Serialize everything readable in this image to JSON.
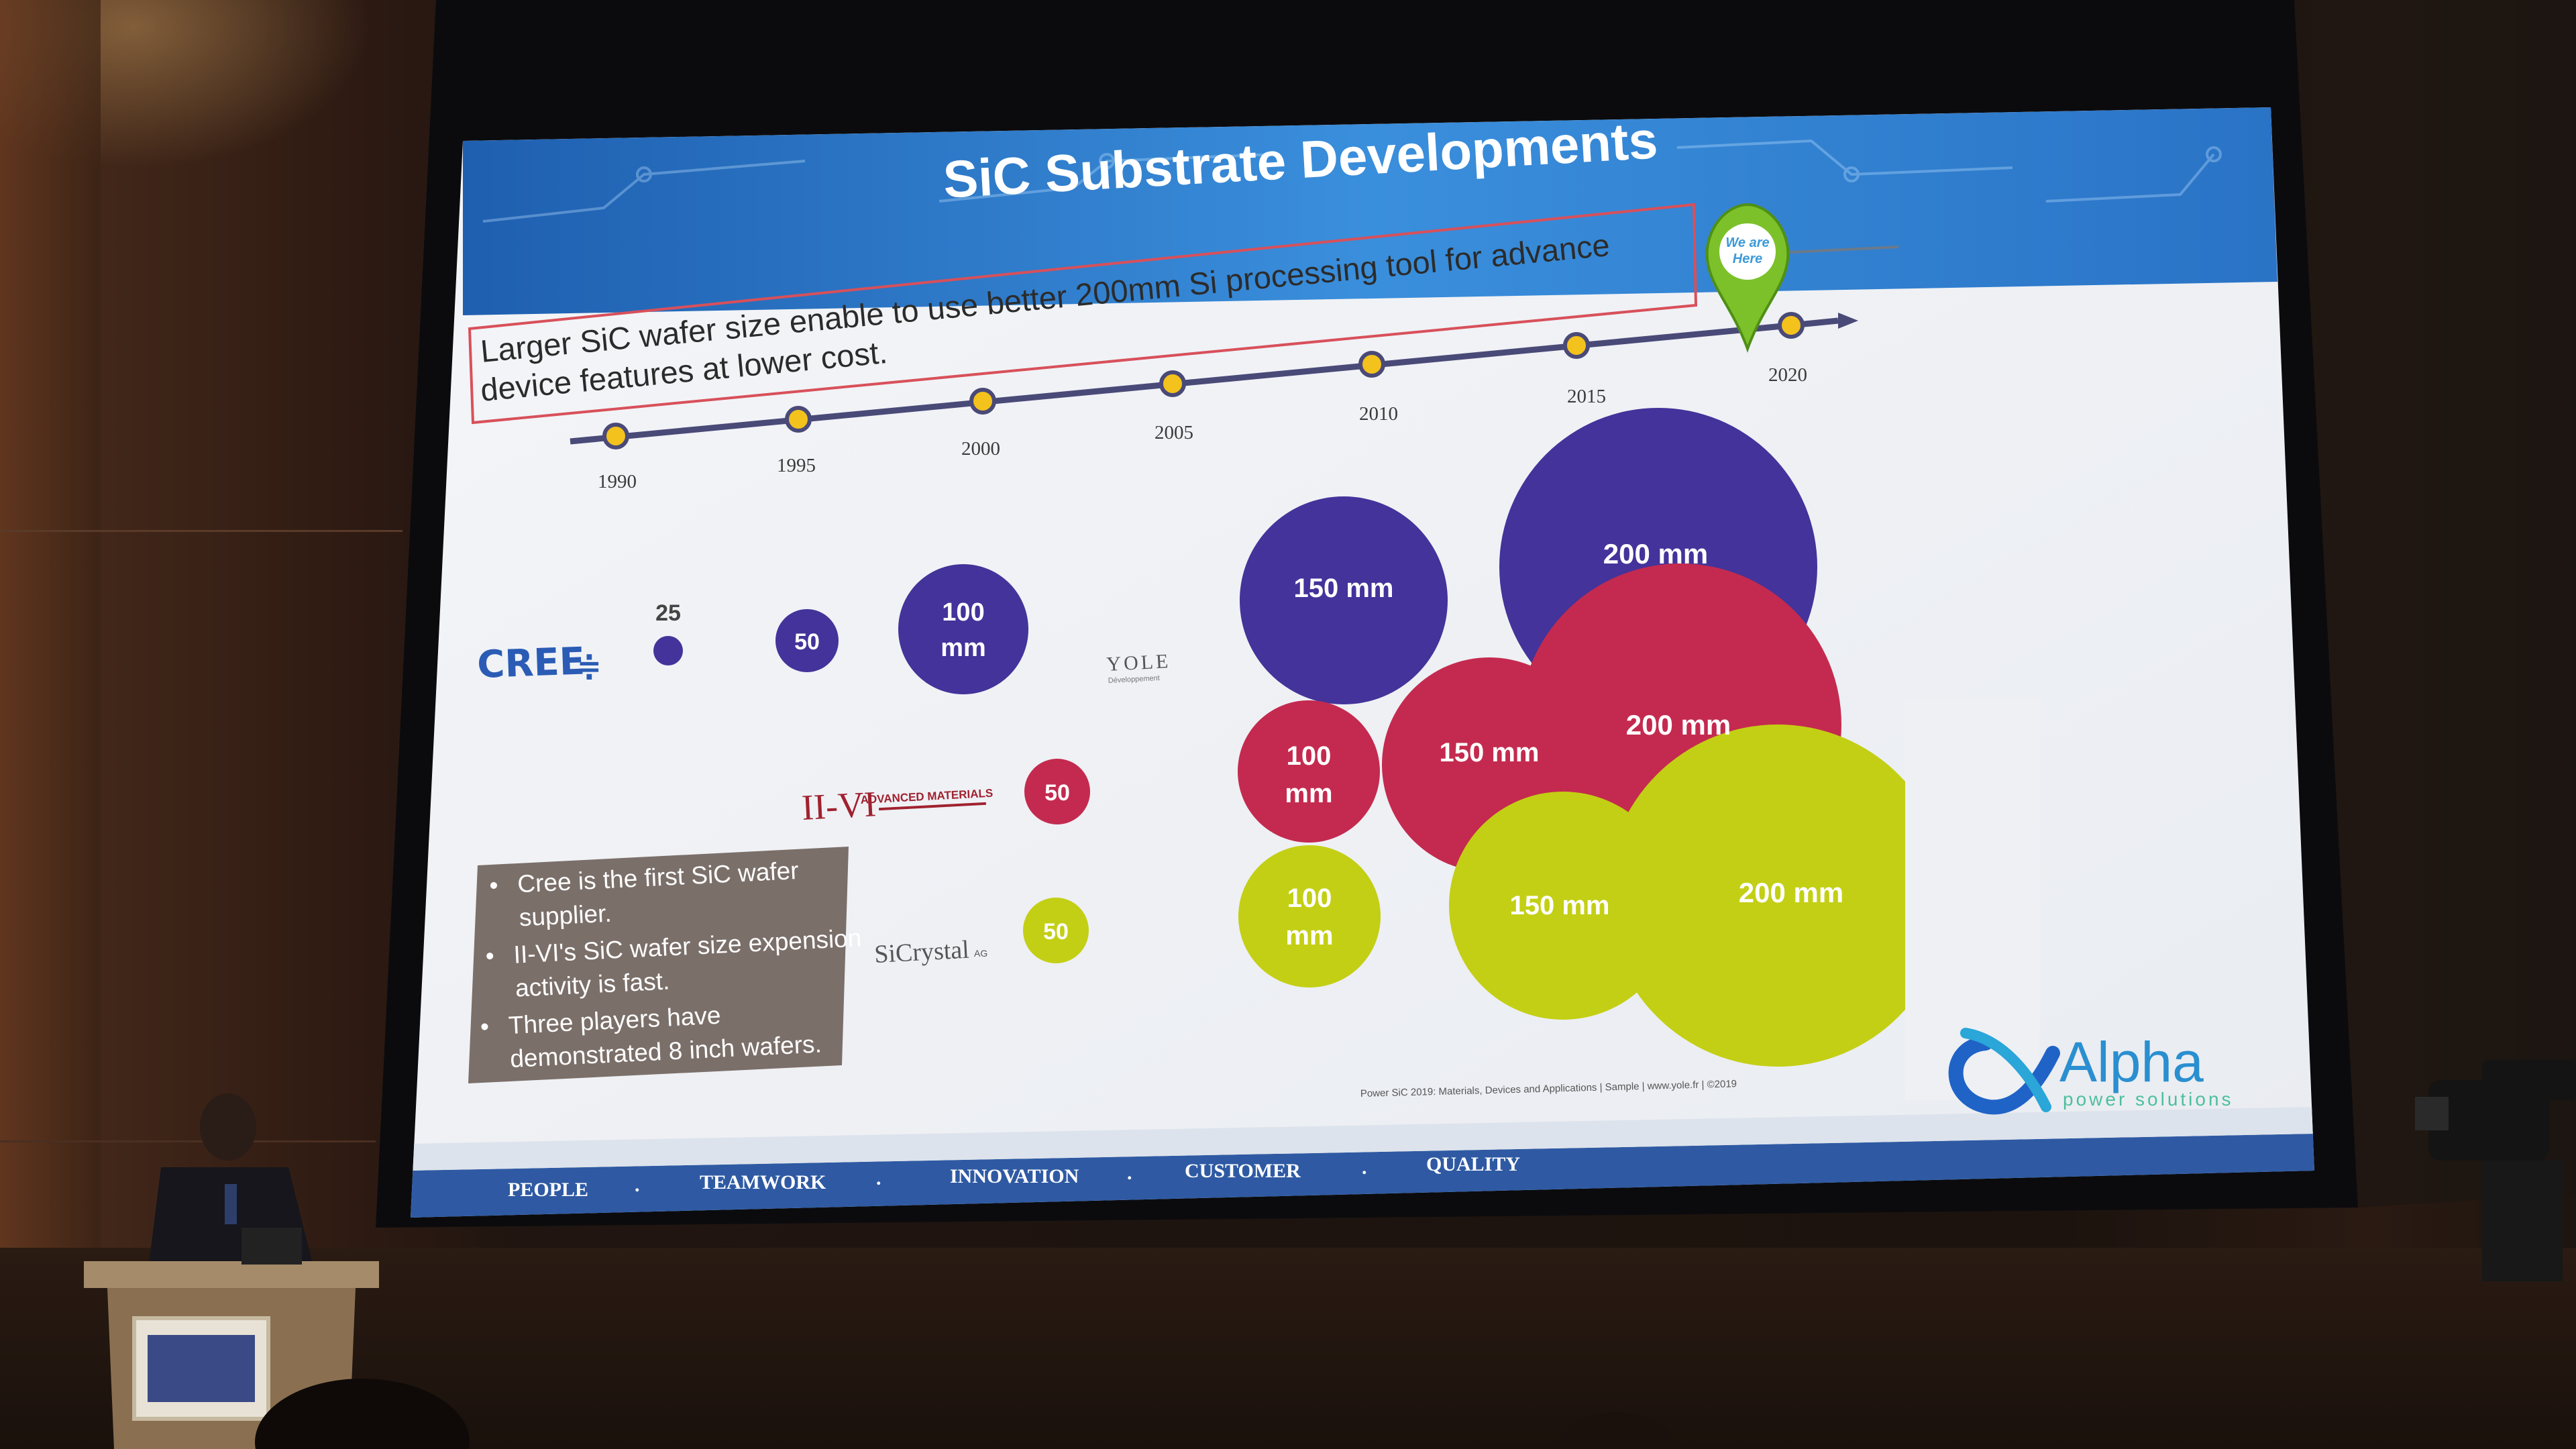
{
  "slide": {
    "title": "SiC Substrate Developments",
    "callout_line1": "Larger SiC wafer size enable to use better 200mm Si processing tool for advance",
    "callout_line2": "device features at lower cost.",
    "marker_text_1": "We are",
    "marker_text_2": "Here",
    "timeline_years": [
      "1990",
      "1995",
      "2000",
      "2005",
      "2010",
      "2015",
      "2020"
    ],
    "companies": {
      "cree": "CREE",
      "iivi": "II-VI",
      "iivi_sub": "ADVANCED MATERIALS",
      "sicrystal": "SiCrystal",
      "sicrystal_sub": "AG",
      "yole": "YOLE",
      "yole_sub": "Développement"
    },
    "wafers": {
      "cree_25": "25",
      "cree_50": "50",
      "cree_100_a": "100",
      "cree_100_b": "mm",
      "cree_150": "150 mm",
      "cree_200": "200 mm",
      "iivi_50": "50",
      "iivi_100_a": "100",
      "iivi_100_b": "mm",
      "iivi_150": "150 mm",
      "iivi_200": "200 mm",
      "sic_50": "50",
      "sic_100_a": "100",
      "sic_100_b": "mm",
      "sic_150": "150 mm",
      "sic_200": "200 mm"
    },
    "bullets": [
      [
        "Cree is the first SiC wafer",
        "supplier."
      ],
      [
        "II-VI's SiC wafer size expension",
        "activity is fast."
      ],
      [
        "Three players have",
        "demonstrated 8 inch wafers."
      ]
    ],
    "source": "Power SiC 2019: Materials, Devices and Applications | Sample | www.yole.fr | ©2019",
    "brand": "Alpha",
    "brand_sub": "power solutions",
    "footer": [
      "PEOPLE",
      "TEAMWORK",
      "INNOVATION",
      "CUSTOMER",
      "QUALITY"
    ],
    "footer_sep": "."
  },
  "colors": {
    "purple": "#43339a",
    "crimson": "#c42a4f",
    "lime": "#c3cf14",
    "timeline_dot": "#f3c21c",
    "header_blue": "#2e78c8",
    "footer_blue": "#2f5aa3",
    "textbox": "#7b6f6a"
  }
}
